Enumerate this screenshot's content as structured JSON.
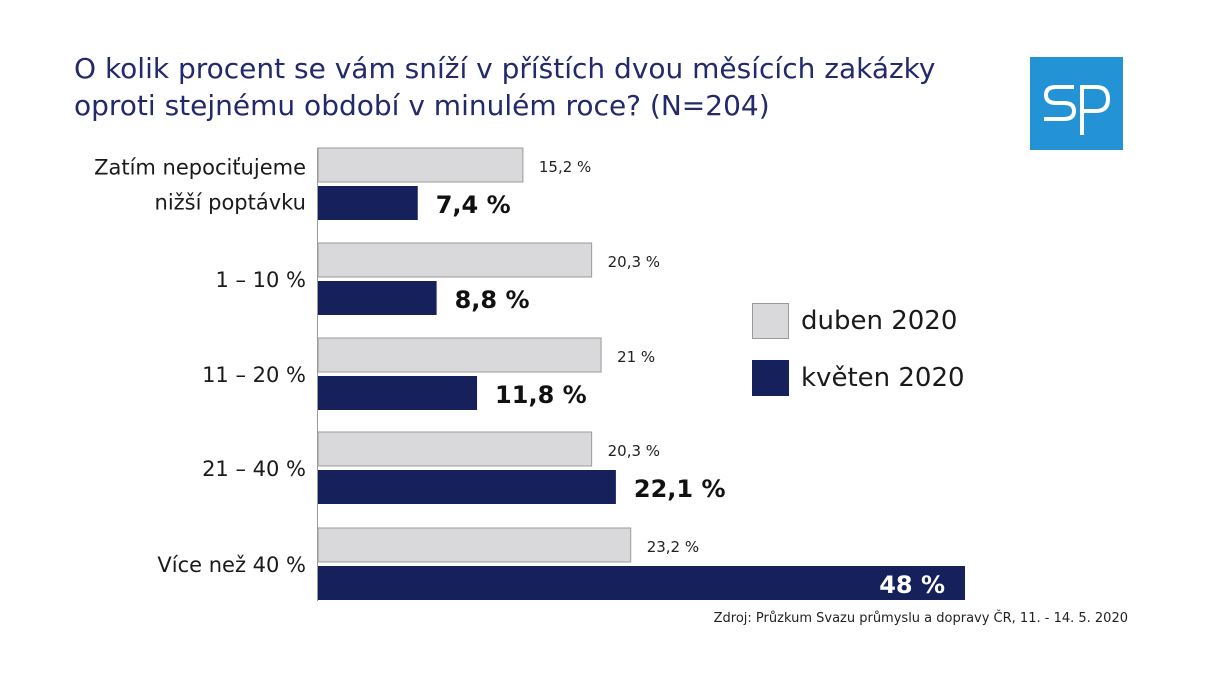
{
  "title_lines": [
    "O kolik procent se vám sníží v příštích dvou měsících zakázky",
    "oproti stejnému období v minulém roce? (N=204)"
  ],
  "logo": {
    "text": "SP",
    "color": "#2393d6"
  },
  "source": "Zdroj: Průzkum Svazu průmyslu a dopravy ČR, 11. - 14. 5. 2020",
  "colors": {
    "duben": "#d9d9db",
    "duben_border": "#9a9a9a",
    "kveten": "#16205a"
  },
  "chart_data": {
    "type": "bar",
    "orientation": "horizontal",
    "title": "O kolik procent se vám sníží v příštích dvou měsících zakázky oproti stejnému období v minulém roce? (N=204)",
    "categories": [
      [
        "Zatím nepociťujeme",
        "nižší poptávku"
      ],
      [
        "1 – 10 %"
      ],
      [
        "11 – 20 %"
      ],
      [
        "21 – 40 %"
      ],
      [
        "Více než 40 %"
      ]
    ],
    "series": [
      {
        "name": "duben 2020",
        "values": [
          15.2,
          20.3,
          21,
          20.3,
          23.2
        ],
        "labels": [
          "15,2 %",
          "20,3 %",
          "21 %",
          "20,3 %",
          "23,2 %"
        ]
      },
      {
        "name": "květen 2020",
        "values": [
          7.4,
          8.8,
          11.8,
          22.1,
          48
        ],
        "labels": [
          "7,4 %",
          "8,8 %",
          "11,8 %",
          "22,1 %",
          "48 %"
        ]
      }
    ],
    "xlim": [
      0,
      48
    ],
    "grid": false,
    "legend_position": "right"
  }
}
